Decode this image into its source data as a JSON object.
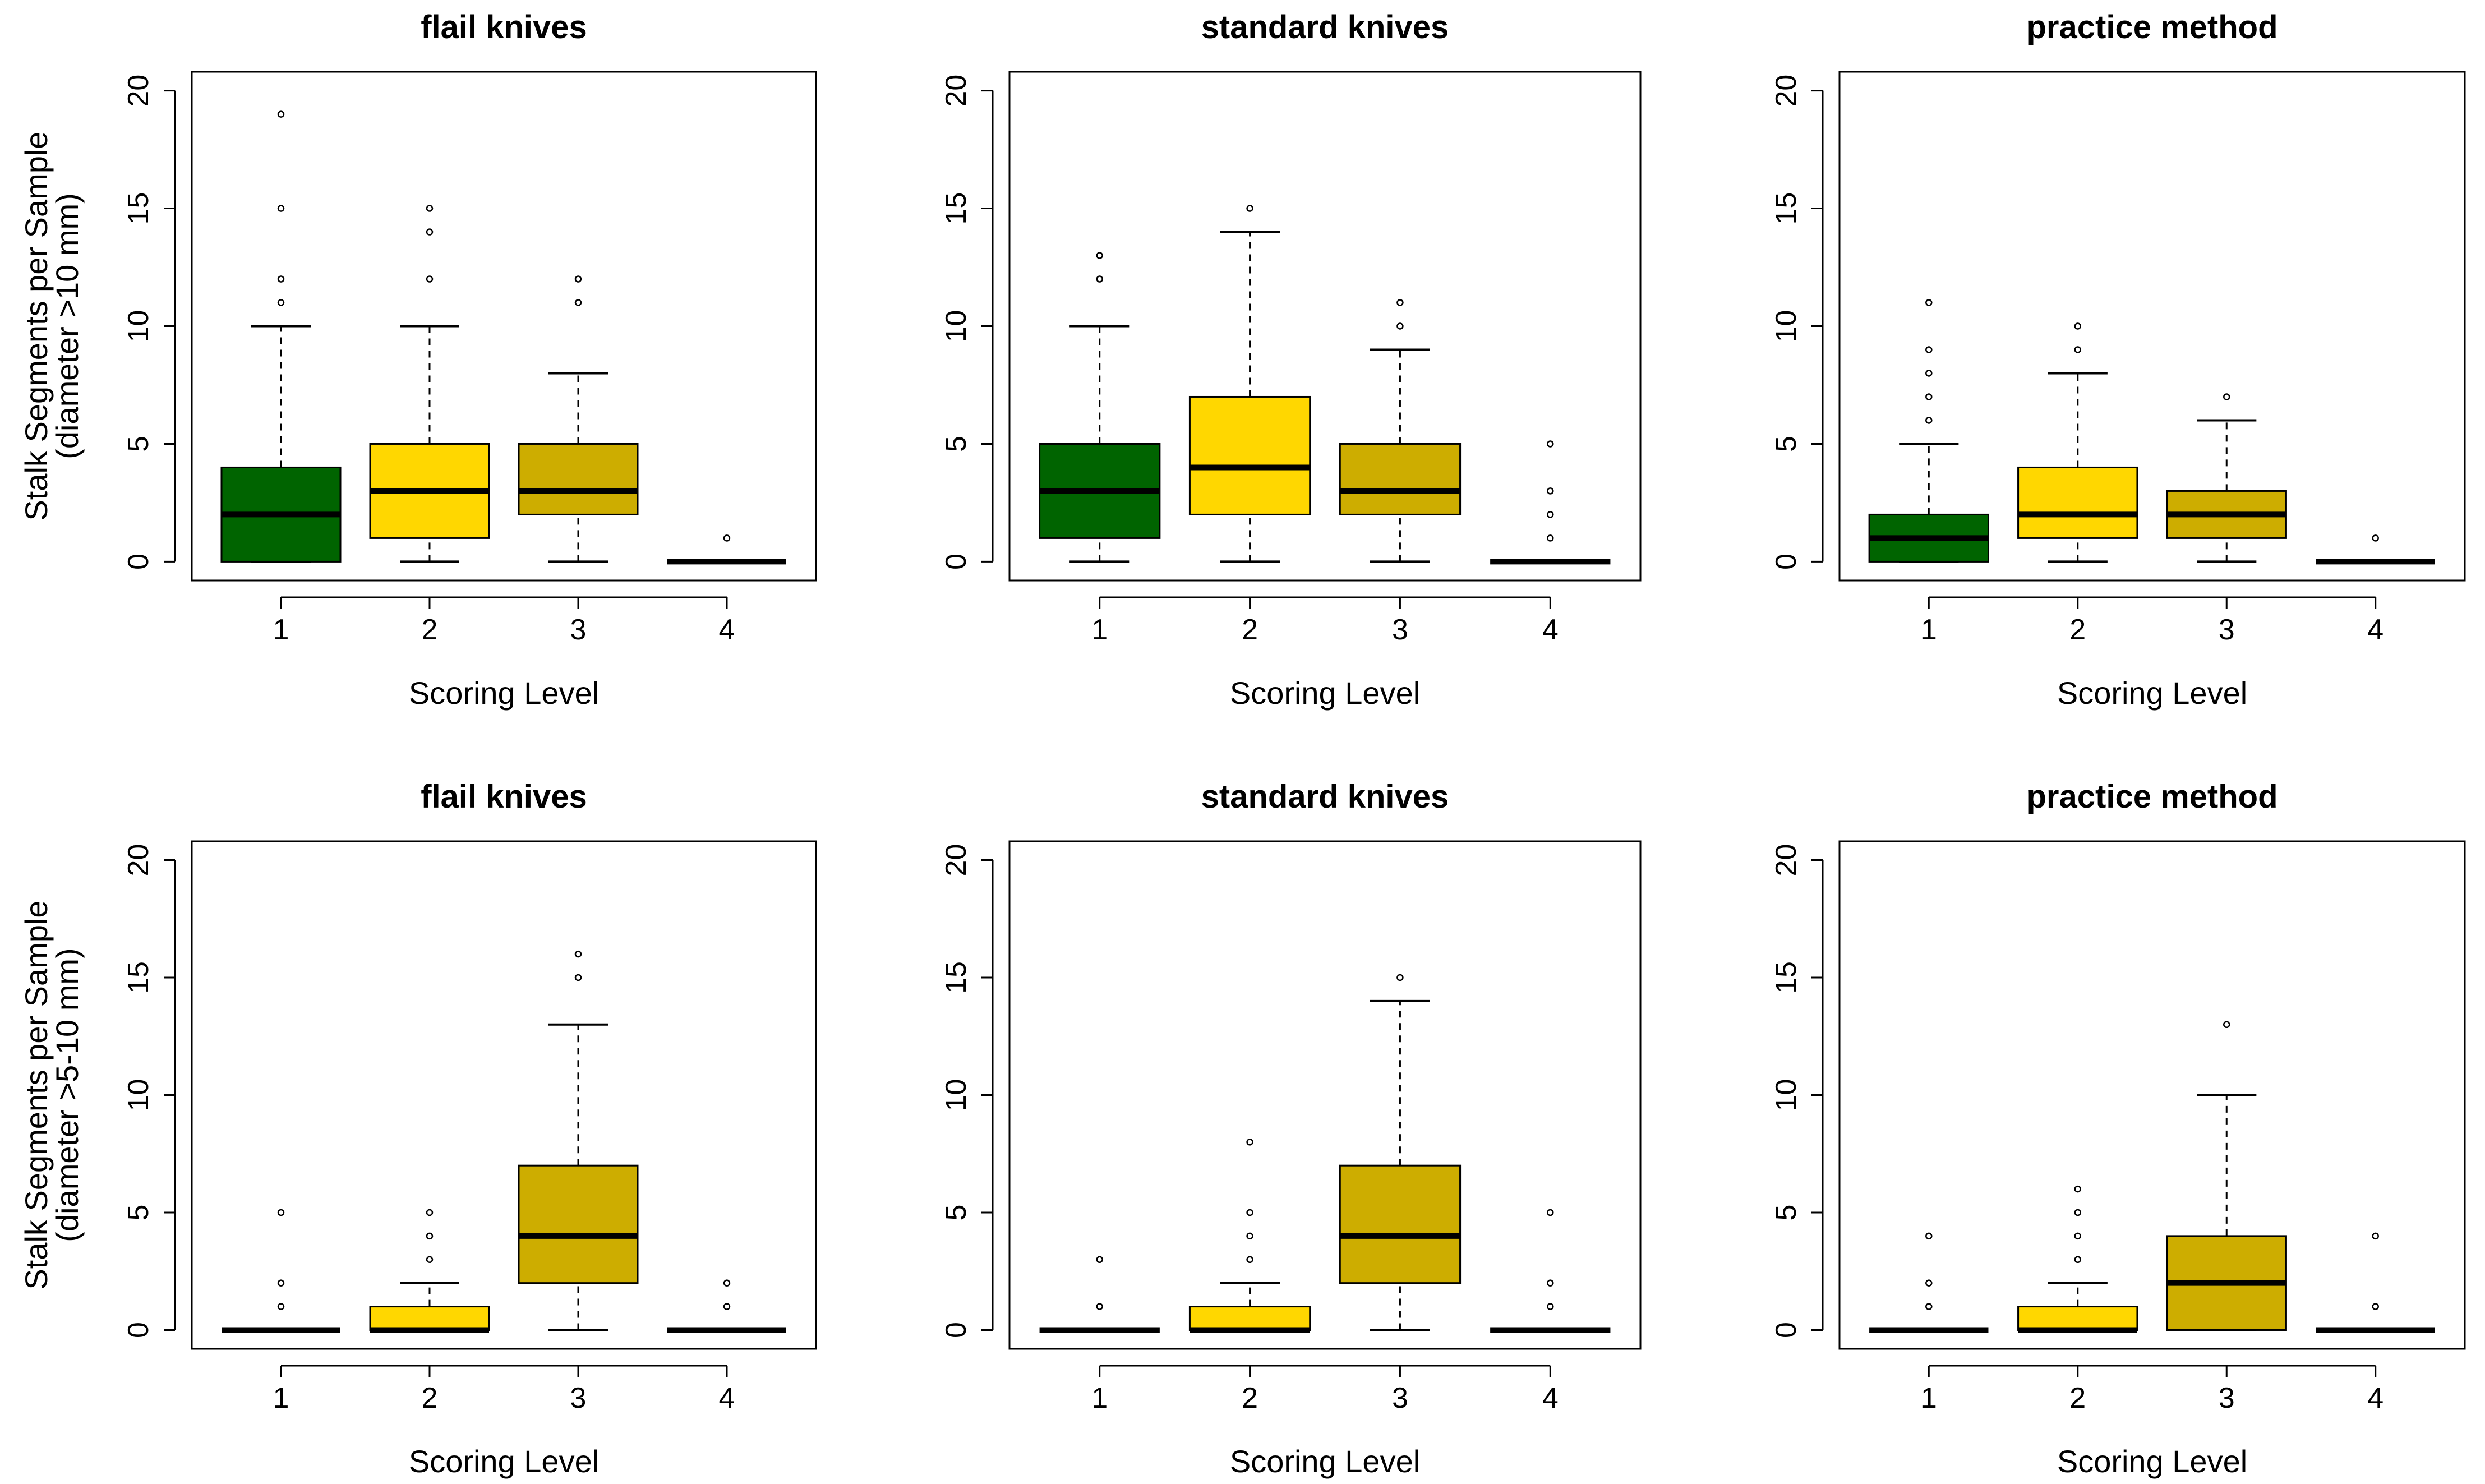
{
  "chart_data": [
    {
      "type": "boxplot",
      "title": "flail knives",
      "xlabel": "Scoring Level",
      "ylabel": [
        "Stalk Segments per Sample",
        "(diameter >10 mm)"
      ],
      "ylim": [
        -0.8,
        20.8
      ],
      "yticks": [
        0,
        5,
        10,
        15,
        20
      ],
      "categories": [
        "1",
        "2",
        "3",
        "4"
      ],
      "colors": [
        "#006400",
        "#FFD700",
        "#CDAD00",
        "#000000"
      ],
      "boxes": [
        {
          "min": 0,
          "q1": 0,
          "median": 2,
          "q3": 4,
          "max": 10,
          "outliers": [
            11,
            12,
            15,
            19
          ]
        },
        {
          "min": 0,
          "q1": 1,
          "median": 3,
          "q3": 5,
          "max": 10,
          "outliers": [
            12,
            14,
            15
          ]
        },
        {
          "min": 0,
          "q1": 2,
          "median": 3,
          "q3": 5,
          "max": 8,
          "outliers": [
            11,
            12
          ]
        },
        {
          "min": 0,
          "q1": 0,
          "median": 0,
          "q3": 0,
          "max": 0,
          "outliers": [
            1
          ]
        }
      ]
    },
    {
      "type": "boxplot",
      "title": "standard knives",
      "xlabel": "Scoring Level",
      "ylabel": [],
      "ylim": [
        -0.8,
        20.8
      ],
      "yticks": [
        0,
        5,
        10,
        15,
        20
      ],
      "categories": [
        "1",
        "2",
        "3",
        "4"
      ],
      "colors": [
        "#006400",
        "#FFD700",
        "#CDAD00",
        "#000000"
      ],
      "boxes": [
        {
          "min": 0,
          "q1": 1,
          "median": 3,
          "q3": 5,
          "max": 10,
          "outliers": [
            12,
            13
          ]
        },
        {
          "min": 0,
          "q1": 2,
          "median": 4,
          "q3": 7,
          "max": 14,
          "outliers": [
            15
          ]
        },
        {
          "min": 0,
          "q1": 2,
          "median": 3,
          "q3": 5,
          "max": 9,
          "outliers": [
            10,
            11
          ]
        },
        {
          "min": 0,
          "q1": 0,
          "median": 0,
          "q3": 0,
          "max": 0,
          "outliers": [
            1,
            2,
            3,
            5
          ]
        }
      ]
    },
    {
      "type": "boxplot",
      "title": "practice method",
      "xlabel": "Scoring Level",
      "ylabel": [],
      "ylim": [
        -0.8,
        20.8
      ],
      "yticks": [
        0,
        5,
        10,
        15,
        20
      ],
      "categories": [
        "1",
        "2",
        "3",
        "4"
      ],
      "colors": [
        "#006400",
        "#FFD700",
        "#CDAD00",
        "#000000"
      ],
      "boxes": [
        {
          "min": 0,
          "q1": 0,
          "median": 1,
          "q3": 2,
          "max": 5,
          "outliers": [
            6,
            7,
            8,
            9,
            11
          ]
        },
        {
          "min": 0,
          "q1": 1,
          "median": 2,
          "q3": 4,
          "max": 8,
          "outliers": [
            9,
            10
          ]
        },
        {
          "min": 0,
          "q1": 1,
          "median": 2,
          "q3": 3,
          "max": 6,
          "outliers": [
            7
          ]
        },
        {
          "min": 0,
          "q1": 0,
          "median": 0,
          "q3": 0,
          "max": 0,
          "outliers": [
            1
          ]
        }
      ]
    },
    {
      "type": "boxplot",
      "title": "flail knives",
      "xlabel": "Scoring Level",
      "ylabel": [
        "Stalk Segments per Sample",
        "(diameter >5-10 mm)"
      ],
      "ylim": [
        -0.8,
        20.8
      ],
      "yticks": [
        0,
        5,
        10,
        15,
        20
      ],
      "categories": [
        "1",
        "2",
        "3",
        "4"
      ],
      "colors": [
        "#006400",
        "#FFD700",
        "#CDAD00",
        "#000000"
      ],
      "boxes": [
        {
          "min": 0,
          "q1": 0,
          "median": 0,
          "q3": 0,
          "max": 0,
          "outliers": [
            1,
            2,
            5
          ]
        },
        {
          "min": 0,
          "q1": 0,
          "median": 0,
          "q3": 1,
          "max": 2,
          "outliers": [
            3,
            4,
            5
          ]
        },
        {
          "min": 0,
          "q1": 2,
          "median": 4,
          "q3": 7,
          "max": 13,
          "outliers": [
            15,
            16
          ]
        },
        {
          "min": 0,
          "q1": 0,
          "median": 0,
          "q3": 0,
          "max": 0,
          "outliers": [
            1,
            2
          ]
        }
      ]
    },
    {
      "type": "boxplot",
      "title": "standard knives",
      "xlabel": "Scoring Level",
      "ylabel": [],
      "ylim": [
        -0.8,
        20.8
      ],
      "yticks": [
        0,
        5,
        10,
        15,
        20
      ],
      "categories": [
        "1",
        "2",
        "3",
        "4"
      ],
      "colors": [
        "#006400",
        "#FFD700",
        "#CDAD00",
        "#000000"
      ],
      "boxes": [
        {
          "min": 0,
          "q1": 0,
          "median": 0,
          "q3": 0,
          "max": 0,
          "outliers": [
            1,
            3
          ]
        },
        {
          "min": 0,
          "q1": 0,
          "median": 0,
          "q3": 1,
          "max": 2,
          "outliers": [
            3,
            4,
            5,
            8
          ]
        },
        {
          "min": 0,
          "q1": 2,
          "median": 4,
          "q3": 7,
          "max": 14,
          "outliers": [
            15
          ]
        },
        {
          "min": 0,
          "q1": 0,
          "median": 0,
          "q3": 0,
          "max": 0,
          "outliers": [
            1,
            2,
            5
          ]
        }
      ]
    },
    {
      "type": "boxplot",
      "title": "practice method",
      "xlabel": "Scoring Level",
      "ylabel": [],
      "ylim": [
        -0.8,
        20.8
      ],
      "yticks": [
        0,
        5,
        10,
        15,
        20
      ],
      "categories": [
        "1",
        "2",
        "3",
        "4"
      ],
      "colors": [
        "#006400",
        "#FFD700",
        "#CDAD00",
        "#000000"
      ],
      "boxes": [
        {
          "min": 0,
          "q1": 0,
          "median": 0,
          "q3": 0,
          "max": 0,
          "outliers": [
            1,
            2,
            4
          ]
        },
        {
          "min": 0,
          "q1": 0,
          "median": 0,
          "q3": 1,
          "max": 2,
          "outliers": [
            3,
            4,
            5,
            6
          ]
        },
        {
          "min": 0,
          "q1": 0,
          "median": 2,
          "q3": 4,
          "max": 10,
          "outliers": [
            13
          ]
        },
        {
          "min": 0,
          "q1": 0,
          "median": 0,
          "q3": 0,
          "max": 0,
          "outliers": [
            1,
            4
          ]
        }
      ]
    }
  ]
}
